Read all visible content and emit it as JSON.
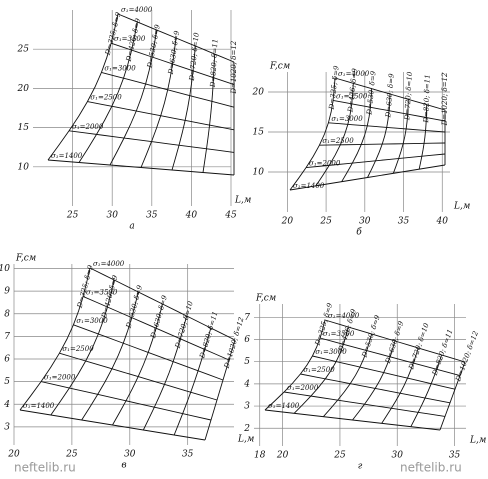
{
  "chart_data": [
    {
      "type": "nomogram",
      "panel_label": "а",
      "x_label": "L,м",
      "xlim": [
        20,
        45
      ],
      "xticks": [
        25,
        30,
        35,
        40,
        45
      ],
      "ylim": [
        5,
        30
      ],
      "yticks": [
        10,
        15,
        20,
        25
      ],
      "sigma_labels": [
        "σ₁=1400",
        "σ₁=2000",
        "σ₁=2500",
        "σ₁=3000",
        "σ₁=3500",
        "σ₁=4000"
      ],
      "d_labels": [
        "D=325; δ=9",
        "D=426; δ=9",
        "D=530; δ=9",
        "D=630; δ=9",
        "D=720; δ=10",
        "D=820; δ=11",
        "D=1020; δ=12"
      ]
    },
    {
      "type": "nomogram",
      "panel_label": "б",
      "x_label": "L,м",
      "y_label": "F,см",
      "xlim": [
        17.5,
        41
      ],
      "xticks": [
        20,
        25,
        30,
        35,
        40
      ],
      "ylim": [
        5,
        22.5
      ],
      "yticks": [
        10,
        15,
        20
      ],
      "sigma_labels": [
        "σ₁=1400",
        "σ₁=2000",
        "σ₁=2500",
        "σ₁=3000",
        "σ₁=3500",
        "σ₁=4000"
      ],
      "d_labels": [
        "D=325; δ=9",
        "D=426; δ=9",
        "D=530; δ=9",
        "D=630; δ=9",
        "D=720; δ=10",
        "D=820; δ=11",
        "D=1020; δ=12"
      ]
    },
    {
      "type": "nomogram",
      "panel_label": "в",
      "x_label": "L,м",
      "y_label": "F,см",
      "xlim": [
        20,
        39
      ],
      "xticks": [
        20,
        25,
        30,
        35
      ],
      "ylim": [
        2.2,
        10.2
      ],
      "yticks": [
        3,
        4,
        5,
        6,
        7,
        8,
        9,
        10
      ],
      "sigma_labels": [
        "σ₁=1400",
        "σ₁=2000",
        "σ₁=2500",
        "σ₁=3000",
        "σ₁=3500",
        "σ₁=4000"
      ],
      "d_labels": [
        "D=325; δ=9",
        "D=426; δ=9",
        "D=530; δ=9",
        "D=630; δ=9",
        "D=720; δ=10",
        "D=820; δ=11",
        "D=1020; δ=12"
      ]
    },
    {
      "type": "nomogram",
      "panel_label": "г",
      "x_label": "L,м",
      "y_label": "F,см",
      "xlim": [
        17.5,
        36
      ],
      "xticks": [
        18,
        20,
        25,
        30,
        35
      ],
      "ylim": [
        1.2,
        7.6
      ],
      "yticks": [
        2,
        3,
        4,
        5,
        6,
        7
      ],
      "sigma_labels": [
        "σ₁=1400",
        "σ₁=2000",
        "σ₁=2500",
        "σ₁=3000",
        "σ₁=3500",
        "σ₁=4000"
      ],
      "d_labels": [
        "D=325; δ=9",
        "D=426; δ=9",
        "D=530; δ=9",
        "D=630; δ=9",
        "D=720; δ=10",
        "D=820; δ=11",
        "D=1020; δ=12"
      ]
    }
  ],
  "watermark": "neftelib.ru"
}
